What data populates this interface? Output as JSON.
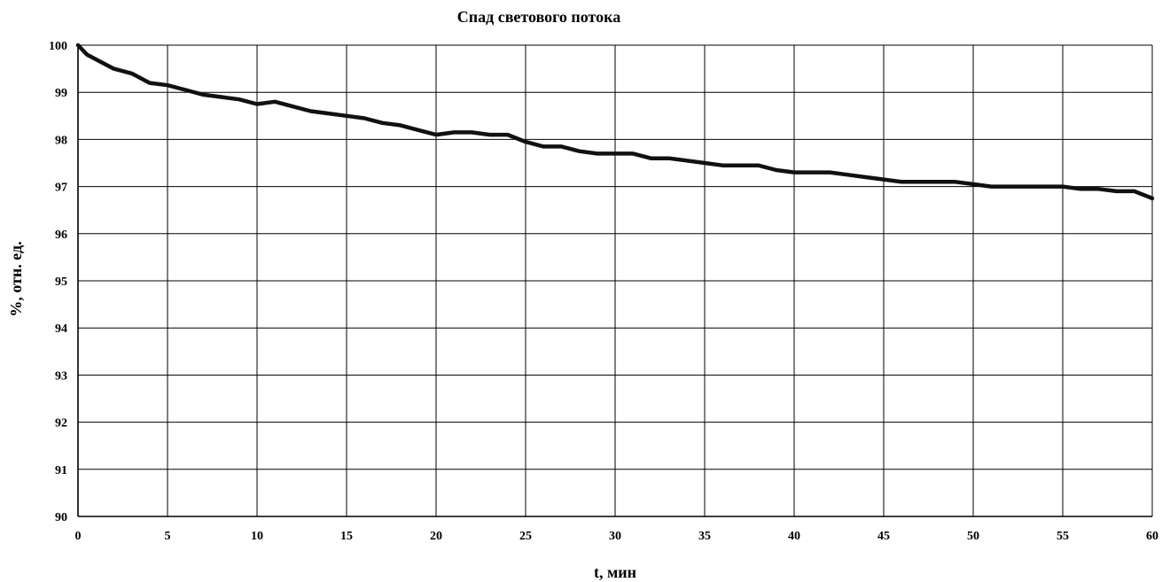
{
  "chart_data": {
    "type": "line",
    "title": "Спад светового потока",
    "xlabel": "t, мин",
    "ylabel": "%, отн. ед.",
    "xlim": [
      0,
      60
    ],
    "ylim": [
      90,
      100
    ],
    "x_ticks": [
      "0",
      "5",
      "10",
      "15",
      "20",
      "25",
      "30",
      "35",
      "40",
      "45",
      "50",
      "55",
      "60"
    ],
    "y_ticks": [
      "90",
      "91",
      "92",
      "93",
      "94",
      "95",
      "96",
      "97",
      "98",
      "99",
      "100"
    ],
    "grid": true,
    "legend": "none",
    "line_color": "#111111",
    "series": [
      {
        "x": [
          0,
          0.5,
          1,
          2,
          3,
          4,
          5,
          6,
          7,
          8,
          9,
          10,
          11,
          12,
          13,
          14,
          15,
          16,
          17,
          18,
          19,
          20,
          21,
          22,
          23,
          24,
          25,
          26,
          27,
          28,
          29,
          30,
          31,
          32,
          33,
          34,
          35,
          36,
          37,
          38,
          39,
          40,
          41,
          42,
          43,
          44,
          45,
          46,
          47,
          48,
          49,
          50,
          51,
          52,
          53,
          54,
          55,
          56,
          57,
          58,
          59,
          60
        ],
        "y": [
          100,
          99.8,
          99.7,
          99.5,
          99.4,
          99.2,
          99.15,
          99.05,
          98.95,
          98.9,
          98.85,
          98.75,
          98.8,
          98.7,
          98.6,
          98.55,
          98.5,
          98.45,
          98.35,
          98.3,
          98.2,
          98.1,
          98.15,
          98.15,
          98.1,
          98.1,
          97.95,
          97.85,
          97.85,
          97.75,
          97.7,
          97.7,
          97.7,
          97.6,
          97.6,
          97.55,
          97.5,
          97.45,
          97.45,
          97.45,
          97.35,
          97.3,
          97.3,
          97.3,
          97.25,
          97.2,
          97.15,
          97.1,
          97.1,
          97.1,
          97.1,
          97.05,
          97.0,
          97.0,
          97.0,
          97.0,
          97.0,
          96.95,
          96.95,
          96.9,
          96.9,
          96.75
        ]
      }
    ]
  }
}
